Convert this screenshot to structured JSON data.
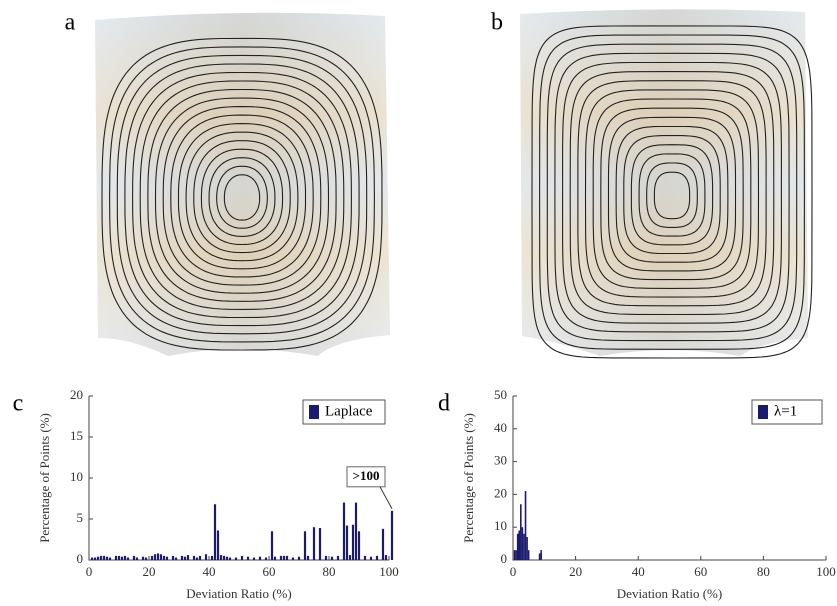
{
  "chart_data": [
    {
      "type": "surface",
      "panel": "a"
    },
    {
      "type": "surface",
      "panel": "b"
    },
    {
      "type": "bar",
      "panel": "c",
      "x_label": "Deviation Ratio (%)",
      "y_label": "Percentage of Points (%)",
      "annotation": ">100",
      "series": [
        {
          "name": "Laplace",
          "color": "#1c1a6e",
          "x": [
            1,
            2,
            3,
            4,
            5,
            6,
            7,
            9,
            10,
            11,
            12,
            13,
            15,
            16,
            18,
            19,
            21,
            22,
            23,
            24,
            25,
            26,
            28,
            29,
            31,
            32,
            33,
            35,
            36,
            37,
            39,
            41,
            42,
            43,
            44,
            45,
            46,
            47,
            49,
            51,
            53,
            55,
            57,
            59,
            61,
            62,
            64,
            65,
            66,
            68,
            70,
            72,
            73,
            75,
            77,
            79,
            81,
            83,
            85,
            86,
            87,
            88,
            89,
            90,
            92,
            94,
            96,
            98,
            99,
            101
          ],
          "values": [
            0.3,
            0.3,
            0.4,
            0.5,
            0.5,
            0.4,
            0.3,
            0.5,
            0.5,
            0.4,
            0.5,
            0.3,
            0.5,
            0.3,
            0.4,
            0.3,
            0.5,
            0.7,
            0.8,
            0.7,
            0.5,
            0.4,
            0.5,
            0.3,
            0.5,
            0.4,
            0.6,
            0.5,
            0.3,
            0.5,
            0.7,
            0.5,
            6.8,
            3.6,
            0.6,
            0.5,
            0.4,
            0.3,
            0.3,
            0.5,
            0.4,
            0.3,
            0.4,
            0.3,
            3.5,
            0.4,
            0.5,
            0.5,
            0.5,
            0.3,
            0.4,
            3.5,
            0.5,
            4,
            3.9,
            0.5,
            0.4,
            0.5,
            7,
            4.2,
            0.6,
            4.3,
            7,
            3.5,
            0.5,
            0.4,
            0.5,
            3.8,
            0.6,
            6
          ]
        }
      ],
      "xlim": [
        0,
        100
      ],
      "xticks": [
        0,
        20,
        40,
        60,
        80,
        100
      ],
      "ylim": [
        0,
        20
      ],
      "yticks": [
        0,
        5,
        10,
        15,
        20
      ],
      "legend": "upper right"
    },
    {
      "type": "bar",
      "panel": "d",
      "x_label": "Deviation Ratio (%)",
      "y_label": "Percentage of Points (%)",
      "series": [
        {
          "name": "λ=1",
          "color": "#1c1a6e",
          "x": [
            0.5,
            1,
            1.5,
            2,
            2.5,
            3,
            3.5,
            4,
            4.5,
            5,
            8.5,
            9
          ],
          "values": [
            3,
            3,
            8,
            9,
            17,
            10,
            8,
            21,
            7,
            3,
            2,
            3
          ]
        }
      ],
      "xlim": [
        0,
        100
      ],
      "xticks": [
        0,
        20,
        40,
        60,
        80,
        100
      ],
      "ylim": [
        0,
        50
      ],
      "yticks": [
        0,
        10,
        20,
        30,
        40,
        50
      ],
      "legend": "upper right"
    }
  ]
}
